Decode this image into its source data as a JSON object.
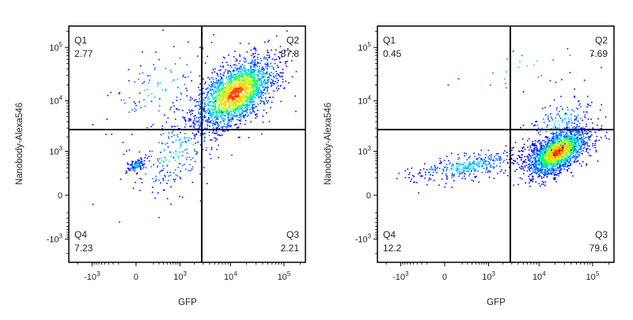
{
  "chart_data": [
    {
      "type": "scatter",
      "subtype": "flow-cytometry-density-dot-plot",
      "xlabel": "GFP",
      "ylabel": "Nanobody-Alexa546",
      "x_scale": "biexponential",
      "y_scale": "biexponential",
      "x_ticks": [
        {
          "label": "-10",
          "exp": "3",
          "value": -1000
        },
        {
          "label": "0",
          "exp": "",
          "value": 0
        },
        {
          "label": "10",
          "exp": "3",
          "value": 1000
        },
        {
          "label": "10",
          "exp": "4",
          "value": 10000
        },
        {
          "label": "10",
          "exp": "5",
          "value": 100000
        }
      ],
      "y_ticks": [
        {
          "label": "-10",
          "exp": "3",
          "value": -1000
        },
        {
          "label": "0",
          "exp": "",
          "value": 0
        },
        {
          "label": "10",
          "exp": "3",
          "value": 1000
        },
        {
          "label": "10",
          "exp": "4",
          "value": 10000
        },
        {
          "label": "10",
          "exp": "5",
          "value": 100000
        }
      ],
      "gate": {
        "x": 2800,
        "y": 2800
      },
      "quadrants": [
        {
          "name": "Q1",
          "value": "2.77",
          "position": "top-left"
        },
        {
          "name": "Q2",
          "value": "87.8",
          "position": "top-right"
        },
        {
          "name": "Q3",
          "value": "2.21",
          "position": "bottom-right"
        },
        {
          "name": "Q4",
          "value": "7.23",
          "position": "bottom-left"
        }
      ],
      "clusters": [
        {
          "x": 12000,
          "y": 14000,
          "spread_x": 0.38,
          "spread_y": 0.34,
          "weight": 0.82
        },
        {
          "x": 900,
          "y": 1100,
          "spread_x": 0.45,
          "spread_y": 0.4,
          "weight": 0.1
        },
        {
          "x": 0,
          "y": 500,
          "spread_x": 0.08,
          "spread_y": 0.06,
          "weight": 0.04
        },
        {
          "x": 300,
          "y": 20000,
          "spread_x": 0.5,
          "spread_y": 0.4,
          "weight": 0.04
        }
      ]
    },
    {
      "type": "scatter",
      "subtype": "flow-cytometry-density-dot-plot",
      "xlabel": "GFP",
      "ylabel": "Nanobody-Alexa546",
      "x_scale": "biexponential",
      "y_scale": "biexponential",
      "x_ticks": [
        {
          "label": "-10",
          "exp": "3",
          "value": -1000
        },
        {
          "label": "0",
          "exp": "",
          "value": 0
        },
        {
          "label": "10",
          "exp": "3",
          "value": 1000
        },
        {
          "label": "10",
          "exp": "4",
          "value": 10000
        },
        {
          "label": "10",
          "exp": "5",
          "value": 100000
        }
      ],
      "y_ticks": [
        {
          "label": "-10",
          "exp": "3",
          "value": -1000
        },
        {
          "label": "0",
          "exp": "",
          "value": 0
        },
        {
          "label": "10",
          "exp": "3",
          "value": 1000
        },
        {
          "label": "10",
          "exp": "4",
          "value": 10000
        },
        {
          "label": "10",
          "exp": "5",
          "value": 100000
        }
      ],
      "gate": {
        "x": 2800,
        "y": 2800
      },
      "quadrants": [
        {
          "name": "Q1",
          "value": "0.45",
          "position": "top-left"
        },
        {
          "name": "Q2",
          "value": "7.69",
          "position": "top-right"
        },
        {
          "name": "Q3",
          "value": "79.6",
          "position": "bottom-right"
        },
        {
          "name": "Q4",
          "value": "12.2",
          "position": "bottom-left"
        }
      ],
      "clusters": [
        {
          "x": 22000,
          "y": 1000,
          "spread_x": 0.28,
          "spread_y": 0.22,
          "weight": 0.78
        },
        {
          "x": 300,
          "y": 450,
          "spread_x": 0.5,
          "spread_y": 0.15,
          "weight": 0.14
        },
        {
          "x": 25000,
          "y": 3500,
          "spread_x": 0.35,
          "spread_y": 0.3,
          "weight": 0.07
        },
        {
          "x": 5000,
          "y": 40000,
          "spread_x": 0.6,
          "spread_y": 0.3,
          "weight": 0.01
        }
      ]
    }
  ],
  "colors": {
    "density": [
      "#0000ff",
      "#0066ff",
      "#00ccff",
      "#00ff66",
      "#ccff00",
      "#ffcc00",
      "#ff3300"
    ],
    "axis": "#000000",
    "gate_line": "#000000"
  }
}
